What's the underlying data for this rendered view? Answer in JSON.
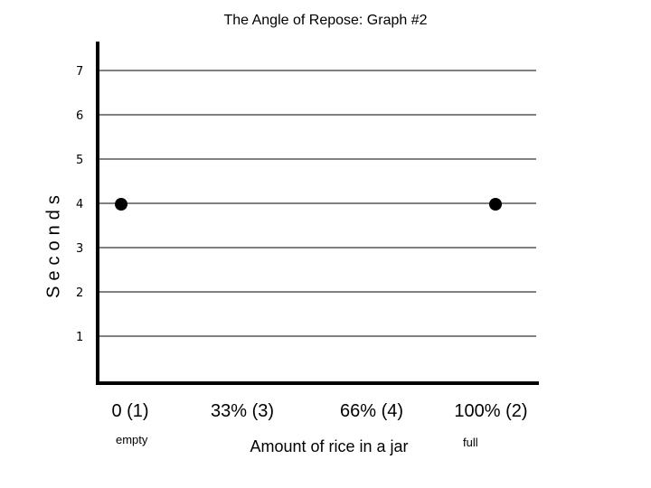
{
  "chart_data": {
    "type": "scatter",
    "title": "The Angle of Repose: Graph #2",
    "xlabel": "Amount of rice in a jar",
    "ylabel": "Seconds",
    "categories": [
      "0 (1)",
      "33% (3)",
      "66% (4)",
      "100% (2)"
    ],
    "category_notes": [
      "empty",
      "",
      "",
      "full"
    ],
    "yticks": [
      1,
      2,
      3,
      4,
      5,
      6,
      7
    ],
    "ylim": [
      0,
      7.5
    ],
    "grid": true,
    "points": [
      {
        "category": "0 (1)",
        "y": 4
      },
      {
        "category": "100% (2)",
        "y": 4
      }
    ],
    "colors": {
      "axis": "#000000",
      "marker": "#000000",
      "grid": "#000000"
    }
  }
}
